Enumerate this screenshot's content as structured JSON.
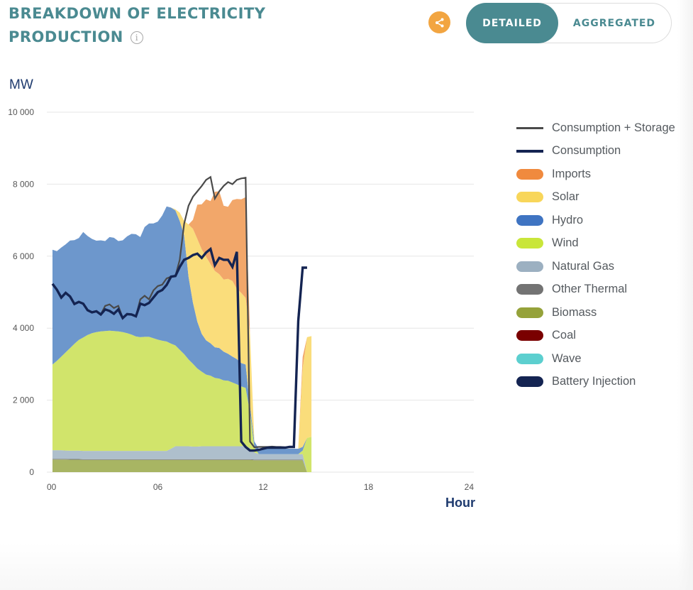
{
  "header": {
    "title": "BREAKDOWN OF ELECTRICITY PRODUCTION",
    "info_icon": "info-icon",
    "share_icon": "share-icon",
    "view_toggle": {
      "options": [
        "DETAILED",
        "AGGREGATED"
      ],
      "selected": "DETAILED"
    }
  },
  "colors": {
    "title": "#4a8a91",
    "accent_orange": "#f2a541"
  },
  "chart_data": {
    "type": "area",
    "title": "Breakdown of Electricity Production",
    "ylabel": "MW",
    "xlabel": "Hour",
    "ylim": [
      0,
      10000
    ],
    "xlim": [
      0,
      24
    ],
    "y_ticks": [
      0,
      2000,
      4000,
      6000,
      8000,
      10000
    ],
    "y_tick_labels": [
      "0",
      "2 000",
      "4 000",
      "6 000",
      "8 000",
      "10 000"
    ],
    "x_ticks": [
      0,
      6,
      12,
      18,
      24
    ],
    "x_tick_labels": [
      "00",
      "06",
      "12",
      "18",
      "24"
    ],
    "grid": true,
    "legend_position": "right",
    "x": [
      0,
      0.25,
      0.5,
      0.75,
      1,
      1.25,
      1.5,
      1.75,
      2,
      2.25,
      2.5,
      2.75,
      3,
      3.25,
      3.5,
      3.75,
      4,
      4.25,
      4.5,
      4.75,
      5,
      5.25,
      5.5,
      5.75,
      6,
      6.25,
      6.5,
      6.75,
      7,
      7.25,
      7.5,
      7.75,
      8,
      8.25,
      8.5,
      8.75,
      9,
      9.25,
      9.5,
      9.75,
      10,
      10.25,
      10.5,
      10.75,
      11,
      11.25,
      11.5,
      11.75,
      12,
      12.25,
      12.5,
      12.75,
      13,
      13.25,
      13.5,
      13.75,
      14,
      14.25,
      14.5,
      14.75
    ],
    "stacked_series": [
      {
        "name": "Biomass",
        "color": "#a8b563",
        "values": [
          350,
          350,
          350,
          350,
          345,
          345,
          345,
          340,
          340,
          340,
          340,
          340,
          340,
          340,
          340,
          340,
          340,
          340,
          340,
          340,
          340,
          340,
          340,
          340,
          340,
          340,
          340,
          340,
          340,
          340,
          340,
          340,
          340,
          340,
          340,
          340,
          340,
          340,
          340,
          340,
          340,
          340,
          340,
          340,
          340,
          340,
          330,
          330,
          330,
          330,
          330,
          330,
          330,
          330,
          330,
          330,
          330,
          330,
          0,
          0
        ]
      },
      {
        "name": "Other Thermal",
        "color": "#7a7a7a",
        "values": [
          20,
          20,
          20,
          20,
          20,
          20,
          20,
          20,
          20,
          20,
          20,
          20,
          20,
          20,
          20,
          20,
          20,
          20,
          20,
          20,
          20,
          20,
          20,
          20,
          20,
          20,
          20,
          20,
          20,
          20,
          20,
          20,
          20,
          20,
          20,
          20,
          20,
          20,
          20,
          20,
          20,
          20,
          20,
          20,
          20,
          20,
          20,
          20,
          20,
          20,
          20,
          20,
          20,
          20,
          20,
          20,
          20,
          20,
          0,
          0
        ]
      },
      {
        "name": "Natural Gas",
        "color": "#aebfcc",
        "values": [
          240,
          240,
          240,
          230,
          230,
          230,
          230,
          230,
          230,
          230,
          230,
          230,
          230,
          230,
          230,
          230,
          230,
          230,
          230,
          230,
          230,
          230,
          230,
          230,
          230,
          230,
          230,
          290,
          360,
          360,
          360,
          360,
          350,
          350,
          360,
          360,
          360,
          360,
          360,
          360,
          360,
          360,
          360,
          360,
          380,
          300,
          200,
          150,
          150,
          150,
          150,
          150,
          150,
          150,
          150,
          150,
          150,
          150,
          0,
          0
        ]
      },
      {
        "name": "Wind",
        "color": "#d1e46b",
        "values": [
          2380,
          2480,
          2600,
          2730,
          2850,
          2970,
          3080,
          3150,
          3220,
          3270,
          3300,
          3320,
          3330,
          3340,
          3330,
          3320,
          3300,
          3270,
          3230,
          3180,
          3160,
          3170,
          3170,
          3130,
          3090,
          3060,
          3040,
          2920,
          2800,
          2680,
          2560,
          2410,
          2300,
          2170,
          2070,
          1990,
          1960,
          1900,
          1880,
          1830,
          1820,
          1770,
          1720,
          1660,
          1600,
          1000,
          150,
          0,
          0,
          0,
          0,
          0,
          0,
          0,
          0,
          0,
          0,
          100,
          950,
          980
        ]
      },
      {
        "name": "Hydro",
        "color": "#6d97cc",
        "values": [
          3190,
          3050,
          3030,
          3000,
          2990,
          2880,
          2830,
          2930,
          2750,
          2620,
          2540,
          2530,
          2500,
          2600,
          2590,
          2510,
          2550,
          2690,
          2800,
          2840,
          2780,
          3050,
          3150,
          3190,
          3280,
          3480,
          3750,
          3780,
          3750,
          3580,
          3300,
          2300,
          1700,
          1300,
          1050,
          950,
          900,
          850,
          850,
          800,
          750,
          720,
          700,
          650,
          650,
          200,
          150,
          150,
          150,
          150,
          150,
          150,
          150,
          150,
          150,
          150,
          150,
          100,
          0,
          0
        ]
      },
      {
        "name": "Solar",
        "color": "#fadd7b",
        "values": [
          0,
          0,
          0,
          0,
          0,
          0,
          0,
          0,
          0,
          0,
          0,
          0,
          0,
          0,
          0,
          0,
          0,
          0,
          0,
          0,
          0,
          0,
          0,
          0,
          0,
          0,
          0,
          0,
          30,
          230,
          400,
          1450,
          2050,
          2300,
          2350,
          2320,
          2200,
          2120,
          2050,
          2000,
          2080,
          2100,
          1950,
          1950,
          1850,
          2000,
          0,
          0,
          0,
          0,
          0,
          0,
          0,
          0,
          0,
          0,
          0,
          2200,
          2800,
          2800
        ]
      },
      {
        "name": "Imports",
        "color": "#f2a76a",
        "values": [
          0,
          0,
          0,
          0,
          0,
          0,
          0,
          0,
          0,
          0,
          0,
          0,
          0,
          0,
          0,
          0,
          0,
          0,
          0,
          0,
          0,
          0,
          0,
          0,
          0,
          0,
          0,
          0,
          0,
          0,
          0,
          0,
          250,
          950,
          1250,
          1600,
          1750,
          2200,
          2300,
          2050,
          2000,
          2250,
          2500,
          2600,
          2800,
          0,
          0,
          0,
          0,
          0,
          0,
          0,
          0,
          0,
          0,
          0,
          0,
          300,
          0,
          0
        ]
      },
      {
        "name": "Coal",
        "color": "#7a0000",
        "values": []
      },
      {
        "name": "Wave",
        "color": "#5ccfcf",
        "values": []
      },
      {
        "name": "Battery Injection",
        "color": "#142452",
        "values": []
      }
    ],
    "line_series": [
      {
        "name": "Consumption + Storage",
        "color": "#4a4a4a",
        "values": [
          5230,
          5070,
          4850,
          4980,
          4880,
          4670,
          4730,
          4680,
          4500,
          4440,
          4470,
          4380,
          4620,
          4660,
          4560,
          4620,
          4280,
          4390,
          4380,
          4330,
          4800,
          4900,
          4800,
          5050,
          5170,
          5210,
          5380,
          5430,
          5450,
          5900,
          6900,
          7400,
          7650,
          7800,
          7950,
          8120,
          8200,
          7600,
          7800,
          7950,
          8060,
          8000,
          8120,
          8160,
          8180,
          850,
          690,
          700,
          700,
          700,
          710,
          700,
          700,
          690,
          700,
          700,
          4300,
          5680,
          5680,
          null
        ]
      },
      {
        "name": "Consumption",
        "color": "#142452",
        "values": [
          5230,
          5070,
          4850,
          4980,
          4880,
          4670,
          4730,
          4680,
          4500,
          4440,
          4470,
          4380,
          4520,
          4480,
          4400,
          4520,
          4280,
          4390,
          4380,
          4330,
          4680,
          4640,
          4700,
          4850,
          5000,
          5060,
          5200,
          5430,
          5450,
          5700,
          5900,
          5950,
          6030,
          6070,
          5950,
          6100,
          6200,
          5750,
          5950,
          5900,
          5900,
          5700,
          6120,
          850,
          700,
          600,
          600,
          620,
          650,
          680,
          680,
          680,
          680,
          680,
          700,
          700,
          4200,
          5680,
          5680,
          null
        ]
      }
    ]
  }
}
